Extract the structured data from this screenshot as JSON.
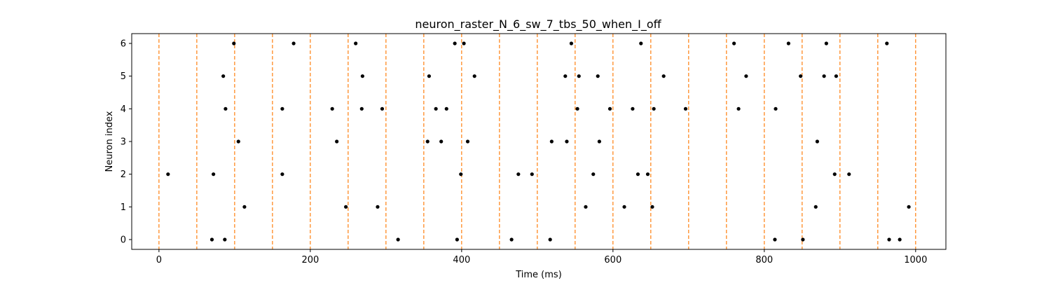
{
  "chart_data": {
    "type": "scatter",
    "title": "neuron_raster_N_6_sw_7_tbs_50_when_I_off",
    "xlabel": "Time (ms)",
    "ylabel": "Neuron index",
    "xlim": [
      -36,
      1040
    ],
    "ylim": [
      -0.3,
      6.3
    ],
    "xticks": [
      0,
      200,
      400,
      600,
      800,
      1000
    ],
    "yticks": [
      0,
      1,
      2,
      3,
      4,
      5,
      6
    ],
    "grid": false,
    "marker_color": "#000000",
    "vline_color": "#ff7f0e",
    "vlines": [
      0,
      50,
      100,
      150,
      200,
      250,
      300,
      350,
      400,
      450,
      500,
      550,
      600,
      650,
      700,
      750,
      800,
      850,
      900,
      950,
      1000
    ],
    "series": [
      {
        "points": [
          [
            70,
            0
          ],
          [
            87,
            0
          ],
          [
            316,
            0
          ],
          [
            394,
            0
          ],
          [
            466,
            0
          ],
          [
            517,
            0
          ],
          [
            814,
            0
          ],
          [
            851,
            0
          ],
          [
            965,
            0
          ],
          [
            979,
            0
          ],
          [
            113,
            1
          ],
          [
            247,
            1
          ],
          [
            289,
            1
          ],
          [
            564,
            1
          ],
          [
            615,
            1
          ],
          [
            652,
            1
          ],
          [
            868,
            1
          ],
          [
            991,
            1
          ],
          [
            12,
            2
          ],
          [
            72,
            2
          ],
          [
            163,
            2
          ],
          [
            399,
            2
          ],
          [
            475,
            2
          ],
          [
            493,
            2
          ],
          [
            574,
            2
          ],
          [
            633,
            2
          ],
          [
            646,
            2
          ],
          [
            893,
            2
          ],
          [
            912,
            2
          ],
          [
            105,
            3
          ],
          [
            235,
            3
          ],
          [
            355,
            3
          ],
          [
            373,
            3
          ],
          [
            408,
            3
          ],
          [
            519,
            3
          ],
          [
            539,
            3
          ],
          [
            582,
            3
          ],
          [
            870,
            3
          ],
          [
            88,
            4
          ],
          [
            163,
            4
          ],
          [
            229,
            4
          ],
          [
            268,
            4
          ],
          [
            295,
            4
          ],
          [
            366,
            4
          ],
          [
            380,
            4
          ],
          [
            553,
            4
          ],
          [
            596,
            4
          ],
          [
            626,
            4
          ],
          [
            654,
            4
          ],
          [
            696,
            4
          ],
          [
            766,
            4
          ],
          [
            815,
            4
          ],
          [
            85,
            5
          ],
          [
            269,
            5
          ],
          [
            357,
            5
          ],
          [
            417,
            5
          ],
          [
            537,
            5
          ],
          [
            555,
            5
          ],
          [
            580,
            5
          ],
          [
            667,
            5
          ],
          [
            776,
            5
          ],
          [
            848,
            5
          ],
          [
            879,
            5
          ],
          [
            895,
            5
          ],
          [
            99,
            6
          ],
          [
            178,
            6
          ],
          [
            260,
            6
          ],
          [
            391,
            6
          ],
          [
            403,
            6
          ],
          [
            545,
            6
          ],
          [
            637,
            6
          ],
          [
            760,
            6
          ],
          [
            832,
            6
          ],
          [
            882,
            6
          ],
          [
            962,
            6
          ]
        ]
      }
    ]
  }
}
